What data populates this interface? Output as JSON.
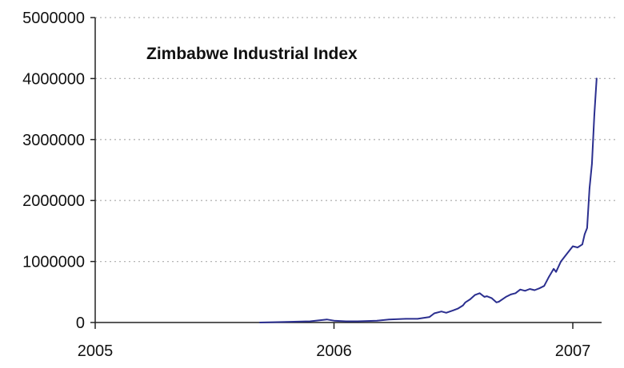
{
  "chart_data": {
    "type": "line",
    "title": "Zimbabwe Industrial Index",
    "xlabel": "",
    "ylabel": "",
    "xlim": [
      2005.0,
      2007.1
    ],
    "ylim": [
      0,
      5000000
    ],
    "x_ticks": [
      2005,
      2006,
      2007
    ],
    "x_tick_labels": [
      "2005",
      "2006",
      "2007"
    ],
    "y_ticks": [
      0,
      1000000,
      2000000,
      3000000,
      4000000,
      5000000
    ],
    "y_tick_labels": [
      "0",
      "1000000",
      "2000000",
      "3000000",
      "4000000",
      "5000000"
    ],
    "grid": {
      "horizontal": true,
      "vertical": false,
      "style": "dotted"
    },
    "legend": "none",
    "colors": {
      "line": "#2b2f8f",
      "grid": "#b5b5b5",
      "axis": "#222222"
    },
    "series": [
      {
        "x": [
          2005.69,
          2005.8,
          2005.9,
          2005.97,
          2006.0,
          2006.05,
          2006.1,
          2006.18,
          2006.23,
          2006.3,
          2006.35,
          2006.4,
          2006.42,
          2006.45,
          2006.47,
          2006.5,
          2006.52,
          2006.54,
          2006.55,
          2006.57,
          2006.59,
          2006.61,
          2006.63,
          2006.64,
          2006.66,
          2006.68,
          2006.69,
          2006.72,
          2006.74,
          2006.76,
          2006.78,
          2006.8,
          2006.82,
          2006.84,
          2006.86,
          2006.88,
          2006.9,
          2006.92,
          2006.93,
          2006.95,
          2006.97,
          2007.0,
          2007.02,
          2007.04,
          2007.05,
          2007.06,
          2007.07,
          2007.08,
          2007.09,
          2007.1
        ],
        "values": [
          0,
          10000,
          20000,
          50000,
          30000,
          20000,
          20000,
          30000,
          50000,
          60000,
          60000,
          90000,
          150000,
          180000,
          160000,
          200000,
          230000,
          280000,
          330000,
          380000,
          450000,
          480000,
          420000,
          430000,
          400000,
          330000,
          340000,
          420000,
          460000,
          480000,
          540000,
          520000,
          550000,
          530000,
          560000,
          600000,
          750000,
          880000,
          830000,
          1000000,
          1100000,
          1250000,
          1230000,
          1280000,
          1450000,
          1550000,
          2200000,
          2600000,
          3400000,
          4000000
        ]
      }
    ]
  }
}
